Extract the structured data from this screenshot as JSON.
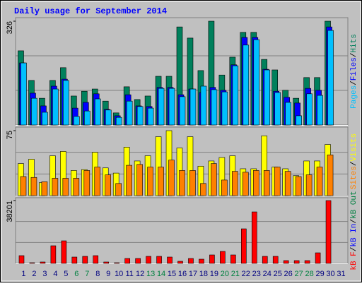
{
  "legend_separator": "/",
  "chart_data": [
    {
      "type": "bar",
      "title": "Daily usage for September 2014",
      "ylim": [
        0,
        326
      ],
      "yticks": [
        326
      ],
      "series": [
        {
          "name": "Pages",
          "color": "#00c0ff",
          "values": [
            195,
            84,
            40,
            113,
            140,
            27,
            44,
            82,
            47,
            24,
            75,
            58,
            53,
            115,
            115,
            89,
            113,
            122,
            111,
            104,
            186,
            251,
            268,
            173,
            102,
            71,
            29,
            98,
            93,
            297,
            0
          ]
        },
        {
          "name": "Files",
          "color": "#0000ff",
          "values": [
            195,
            100,
            60,
            122,
            144,
            53,
            71,
            98,
            49,
            29,
            95,
            60,
            58,
            118,
            118,
            95,
            113,
            102,
            118,
            109,
            189,
            275,
            275,
            175,
            106,
            87,
            69,
            115,
            109,
            308,
            0
          ]
        },
        {
          "name": "Hits",
          "color": "#00805c",
          "values": [
            233,
            140,
            84,
            140,
            180,
            91,
            106,
            113,
            75,
            38,
            120,
            80,
            91,
            153,
            153,
            308,
            273,
            171,
            326,
            157,
            213,
            291,
            291,
            206,
            173,
            109,
            84,
            149,
            149,
            326,
            0
          ]
        }
      ]
    },
    {
      "type": "bar",
      "ylim": [
        0,
        75
      ],
      "yticks": [
        75
      ],
      "series": [
        {
          "name": "Sites",
          "color": "#ff8000",
          "values": [
            22,
            21,
            16,
            20,
            20,
            20,
            29,
            33,
            24,
            14,
            35,
            36,
            33,
            33,
            41,
            29,
            29,
            14,
            37,
            18,
            28,
            27,
            29,
            29,
            33,
            28,
            22,
            24,
            33,
            47,
            0
          ]
        },
        {
          "name": "Visits",
          "color": "#ffff00",
          "values": [
            37,
            42,
            15,
            46,
            51,
            29,
            30,
            50,
            32,
            26,
            56,
            40,
            46,
            68,
            75,
            55,
            68,
            34,
            40,
            44,
            46,
            31,
            31,
            69,
            33,
            31,
            23,
            40,
            40,
            59,
            0
          ]
        }
      ]
    },
    {
      "type": "bar",
      "ylim": [
        0,
        38201
      ],
      "yticks": [
        38201
      ],
      "categories": [
        "1",
        "2",
        "3",
        "4",
        "5",
        "6",
        "7",
        "8",
        "9",
        "10",
        "11",
        "12",
        "13",
        "14",
        "15",
        "16",
        "17",
        "18",
        "19",
        "20",
        "21",
        "22",
        "23",
        "24",
        "25",
        "26",
        "27",
        "28",
        "29",
        "30",
        "31"
      ],
      "highlight_categories": [
        5,
        6,
        12,
        13,
        19,
        20,
        26,
        27
      ],
      "highlight_color": "#008040",
      "category_color": "#000080",
      "series": [
        {
          "name": "kB F",
          "color": "#ff0000",
          "values": [
            4719,
            429,
            858,
            10725,
            13728,
            3861,
            4290,
            4719,
            858,
            429,
            3003,
            3003,
            4290,
            4290,
            3861,
            1287,
            3003,
            2574,
            5148,
            7293,
            5148,
            21021,
            31317,
            4290,
            4290,
            1716,
            1716,
            1716,
            6435,
            38201,
            0
          ]
        }
      ],
      "legend_extra": [
        {
          "name": "kB In",
          "color": "#0000ff"
        },
        {
          "name": "kB Out",
          "color": "#008040"
        }
      ]
    }
  ]
}
